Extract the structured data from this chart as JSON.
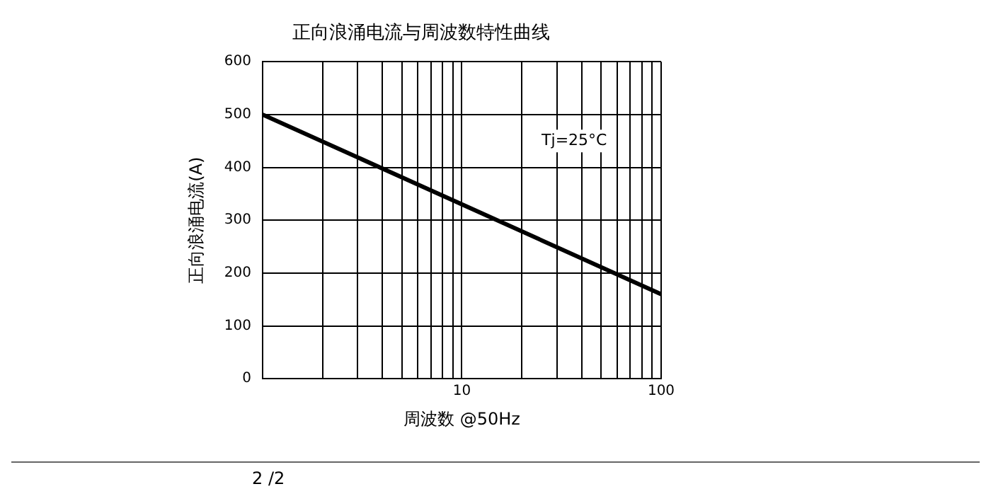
{
  "chart_data": {
    "type": "line",
    "title": "正向浪涌电流与周波数特性曲线",
    "xlabel": "周波数 @50Hz",
    "ylabel": "正向浪涌电流(A)",
    "x": [
      1,
      10,
      100
    ],
    "series": [
      {
        "color": "#000000",
        "values": [
          500,
          330,
          160
        ]
      }
    ],
    "xlim": [
      1,
      100
    ],
    "ylim": [
      0,
      600
    ],
    "xticks": [
      {
        "value": 1,
        "label": null
      },
      {
        "value": 2,
        "label": null
      },
      {
        "value": 3,
        "label": null
      },
      {
        "value": 4,
        "label": null
      },
      {
        "value": 5,
        "label": null
      },
      {
        "value": 6,
        "label": null
      },
      {
        "value": 7,
        "label": null
      },
      {
        "value": 8,
        "label": null
      },
      {
        "value": 9,
        "label": null
      },
      10,
      {
        "value": 20,
        "label": null
      },
      {
        "value": 30,
        "label": null
      },
      {
        "value": 40,
        "label": null
      },
      {
        "value": 50,
        "label": null
      },
      {
        "value": 60,
        "label": null
      },
      {
        "value": 70,
        "label": null
      },
      {
        "value": 80,
        "label": null
      },
      {
        "value": 90,
        "label": null
      },
      100
    ],
    "yticks": [
      0,
      100,
      200,
      300,
      400,
      500,
      600
    ],
    "log": "x",
    "grid": true,
    "legend": false,
    "marker": "none",
    "line_style": "solid",
    "annotations": [
      "Tj=25°C",
      "2 /2"
    ]
  }
}
